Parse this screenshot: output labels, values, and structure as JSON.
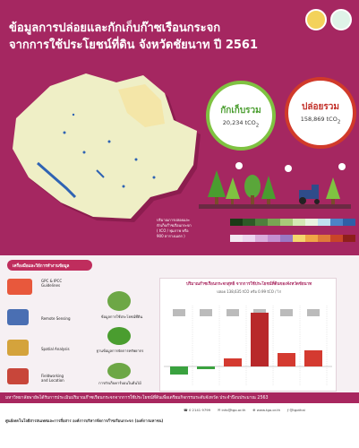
{
  "title": {
    "line1": "ข้อมูลการปล่อยและกักเก็บก๊าซเรือนกระจก",
    "line2": "จากการใช้ประโยชน์ที่ดิน จังหวัดชัยนาท ปี 2561"
  },
  "capture": {
    "label": "กักเก็บรวม",
    "value": "20,234 tCO",
    "sub": "2",
    "color": "#7fc241"
  },
  "emission": {
    "label": "ปล่อยรวม",
    "value": "158,869 tCO",
    "sub": "2",
    "color": "#d13a2a"
  },
  "legend": {
    "text_line1": "ปริมาณการปล่อยและ",
    "text_line2": "กักเก็บก๊าซเรือนกระจก",
    "text_line3": "( tCO / พุ่มภาพ หรือ",
    "text_line4": "900 ตารางเมตร )",
    "top_colors": [
      "#1b3a17",
      "#2e5a27",
      "#4e7f3c",
      "#79a553",
      "#a9c979",
      "#d4e8b4",
      "#e9f3df",
      "#bfe0ef",
      "#4c84c7",
      "#2f5fa6"
    ],
    "bottom_colors": [
      "#f3e8f2",
      "#ecd6ef",
      "#d9aedc",
      "#c48fd0",
      "#9a78c4",
      "#f4d66c",
      "#f0a646",
      "#e07a39",
      "#c94528",
      "#8e1f1b"
    ]
  },
  "tools": {
    "heading": "เครื่องมือและวิธีการทำงานข้อมูล",
    "gpc": "GPC & IPCC",
    "gpc2": "Guidelines",
    "remote": "Remote Sensing",
    "spatial": "Spatial Analysis",
    "field1": "Fieldworking",
    "field2": "and Location",
    "center1": "ข้อมูลการใช้ประโยชน์ที่ดิน",
    "center2": "ฐานข้อมูลการจัดการทรัพยากร",
    "center3": "การกักเก็บคาร์บอนในต้นไม้"
  },
  "chart": {
    "title": "ปริมาณก๊าซเรือนกระจกสุทธิ จากการใช้ประโยชน์ที่ดินของจังหวัดชัยนาท",
    "subtitle": "ปล่อย 138,635 tCO  หรือ 0.99 tCO  / ไร่",
    "bars": [
      {
        "value": -6,
        "color": "#3aa23f"
      },
      {
        "value": -2,
        "color": "#3aa23f"
      },
      {
        "value": 6,
        "color": "#d43a30"
      },
      {
        "value": 40,
        "color": "#b8282a"
      },
      {
        "value": 10,
        "color": "#d43a30"
      },
      {
        "value": 12,
        "color": "#d43a30"
      }
    ]
  },
  "footer": {
    "project": "มหาวิทยาลัยพายัพได้รับการประเมินปริมาณก๊าซเรือนกระจกจากการใช้ประโยชน์ที่ดินเพื่อเตรียมกิจกรรมระดับจังหวัด ประจำปีงบประมาณ 2563",
    "org": "ศูนย์เทคโนโลยีสารสนเทศและการสื่อสาร องค์การบริหารจัดการก๊าซเรือนกระจก (องค์การมหาชน)",
    "phone": "0 2141 9799",
    "email": "info@tgo.or.th",
    "web": "www.tgo.or.th",
    "social": "@tgothai"
  }
}
